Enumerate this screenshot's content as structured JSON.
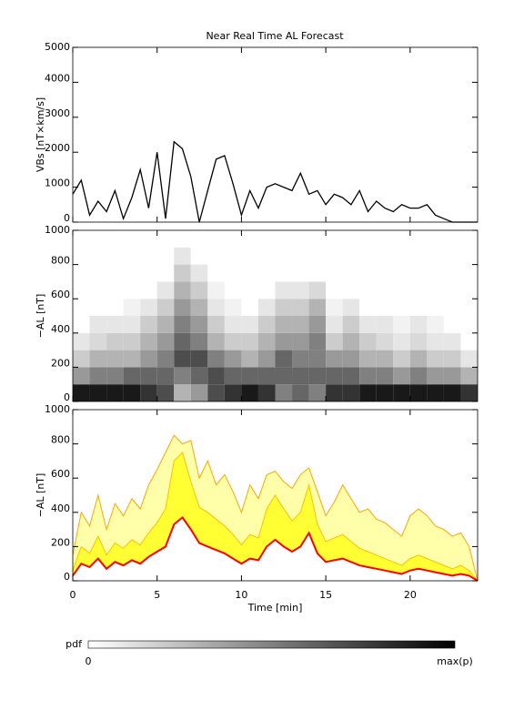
{
  "chart_data": [
    {
      "type": "line",
      "title": "Near Real Time AL Forecast",
      "ylabel": "VBs [nT×km/s]",
      "color": "#000000",
      "xlim": [
        0,
        24
      ],
      "xticks": [
        0,
        5,
        10,
        15,
        20
      ],
      "show_xtick_labels": false,
      "ylim": [
        0,
        5000
      ],
      "yticks": [
        0,
        1000,
        2000,
        3000,
        4000,
        5000
      ],
      "x": [
        0,
        0.5,
        1,
        1.5,
        2,
        2.5,
        3,
        3.5,
        4,
        4.5,
        5,
        5.5,
        6,
        6.5,
        7,
        7.5,
        8,
        8.5,
        9,
        9.5,
        10,
        10.5,
        11,
        11.5,
        12,
        12.5,
        13,
        13.5,
        14,
        14.5,
        15,
        15.5,
        16,
        16.5,
        17,
        17.5,
        18,
        18.5,
        19,
        19.5,
        20,
        20.5,
        21,
        21.5,
        22,
        22.5,
        23,
        23.5,
        24
      ],
      "values": [
        800,
        1200,
        200,
        600,
        300,
        900,
        100,
        700,
        1500,
        400,
        2000,
        100,
        2300,
        2100,
        1300,
        0,
        900,
        1800,
        1900,
        1100,
        200,
        900,
        400,
        1000,
        1100,
        1000,
        900,
        1400,
        800,
        900,
        500,
        800,
        700,
        500,
        900,
        300,
        600,
        400,
        300,
        500,
        400,
        400,
        500,
        200,
        100,
        0,
        0,
        0,
        0
      ]
    },
    {
      "type": "heatmap",
      "ylabel": "−AL [nT]",
      "xlim": [
        0,
        24
      ],
      "xticks": [
        0,
        5,
        10,
        15,
        20
      ],
      "show_xtick_labels": false,
      "ylim": [
        0,
        1000
      ],
      "yticks": [
        0,
        200,
        400,
        600,
        800,
        1000
      ],
      "xbins": [
        0,
        1,
        2,
        3,
        4,
        5,
        6,
        7,
        8,
        9,
        10,
        11,
        12,
        13,
        14,
        15,
        16,
        17,
        18,
        19,
        20,
        21,
        22,
        23,
        24
      ],
      "ybins": [
        0,
        100,
        200,
        300,
        400,
        500,
        600,
        700,
        800,
        900
      ],
      "pdf": [
        [
          0.9,
          0.4,
          0.2,
          0.1,
          0,
          0,
          0,
          0,
          0
        ],
        [
          0.9,
          0.5,
          0.3,
          0.15,
          0.1,
          0,
          0,
          0,
          0
        ],
        [
          0.9,
          0.5,
          0.3,
          0.2,
          0.1,
          0,
          0,
          0,
          0
        ],
        [
          0.9,
          0.6,
          0.3,
          0.2,
          0.1,
          0.05,
          0,
          0,
          0
        ],
        [
          0.8,
          0.6,
          0.4,
          0.3,
          0.2,
          0.1,
          0,
          0,
          0
        ],
        [
          0.7,
          0.6,
          0.5,
          0.4,
          0.3,
          0.2,
          0.1,
          0,
          0
        ],
        [
          0.3,
          0.5,
          0.7,
          0.6,
          0.5,
          0.4,
          0.3,
          0.2,
          0.1
        ],
        [
          0.4,
          0.6,
          0.7,
          0.5,
          0.4,
          0.3,
          0.2,
          0.1,
          0
        ],
        [
          0.7,
          0.7,
          0.5,
          0.3,
          0.2,
          0.1,
          0.05,
          0,
          0
        ],
        [
          0.8,
          0.6,
          0.4,
          0.2,
          0.1,
          0.05,
          0,
          0,
          0
        ],
        [
          0.9,
          0.6,
          0.3,
          0.2,
          0.1,
          0,
          0,
          0,
          0
        ],
        [
          0.8,
          0.6,
          0.4,
          0.3,
          0.2,
          0.1,
          0,
          0,
          0
        ],
        [
          0.5,
          0.6,
          0.6,
          0.4,
          0.3,
          0.2,
          0.1,
          0,
          0
        ],
        [
          0.6,
          0.6,
          0.5,
          0.4,
          0.3,
          0.2,
          0.1,
          0,
          0
        ],
        [
          0.5,
          0.6,
          0.5,
          0.5,
          0.4,
          0.3,
          0.15,
          0,
          0
        ],
        [
          0.8,
          0.6,
          0.4,
          0.2,
          0.1,
          0.05,
          0,
          0,
          0
        ],
        [
          0.8,
          0.6,
          0.4,
          0.3,
          0.2,
          0.1,
          0,
          0,
          0
        ],
        [
          0.9,
          0.5,
          0.3,
          0.2,
          0.1,
          0,
          0,
          0,
          0
        ],
        [
          0.9,
          0.5,
          0.3,
          0.15,
          0.1,
          0,
          0,
          0,
          0
        ],
        [
          0.9,
          0.4,
          0.2,
          0.1,
          0.05,
          0,
          0,
          0,
          0
        ],
        [
          0.9,
          0.5,
          0.3,
          0.15,
          0.1,
          0,
          0,
          0,
          0
        ],
        [
          0.9,
          0.4,
          0.2,
          0.1,
          0.05,
          0,
          0,
          0,
          0
        ],
        [
          0.9,
          0.4,
          0.2,
          0.1,
          0,
          0,
          0,
          0,
          0
        ],
        [
          0.8,
          0.3,
          0.1,
          0,
          0,
          0,
          0,
          0,
          0
        ]
      ],
      "colorbar_label": "pdf",
      "colorbar_min_label": "0",
      "colorbar_max_label": "max(p)"
    },
    {
      "type": "area",
      "ylabel": "−AL [nT]",
      "xlabel": "Time [min]",
      "xlim": [
        0,
        24
      ],
      "xticks": [
        0,
        5,
        10,
        15,
        20
      ],
      "show_xtick_labels": true,
      "ylim": [
        0,
        1000
      ],
      "yticks": [
        0,
        200,
        400,
        600,
        800,
        1000
      ],
      "x": [
        0,
        0.5,
        1,
        1.5,
        2,
        2.5,
        3,
        3.5,
        4,
        4.5,
        5,
        5.5,
        6,
        6.5,
        7,
        7.5,
        8,
        8.5,
        9,
        9.5,
        10,
        10.5,
        11,
        11.5,
        12,
        12.5,
        13,
        13.5,
        14,
        14.5,
        15,
        15.5,
        16,
        16.5,
        17,
        17.5,
        18,
        18.5,
        19,
        19.5,
        20,
        20.5,
        21,
        21.5,
        22,
        22.5,
        23,
        23.5,
        24
      ],
      "series": [
        {
          "color": "#ffffaa",
          "stroke": "#ffa500",
          "values": [
            150,
            400,
            320,
            500,
            300,
            450,
            380,
            480,
            420,
            560,
            650,
            750,
            850,
            800,
            820,
            600,
            700,
            560,
            620,
            520,
            400,
            560,
            480,
            620,
            640,
            580,
            540,
            620,
            660,
            520,
            380,
            460,
            560,
            480,
            400,
            420,
            360,
            340,
            300,
            260,
            380,
            420,
            380,
            320,
            300,
            260,
            280,
            200,
            0
          ]
        },
        {
          "color": "#ffff33",
          "stroke": "#ffc000",
          "values": [
            60,
            200,
            160,
            260,
            150,
            220,
            190,
            240,
            210,
            280,
            340,
            420,
            700,
            750,
            580,
            430,
            400,
            360,
            320,
            270,
            210,
            270,
            250,
            420,
            500,
            420,
            350,
            400,
            560,
            330,
            230,
            250,
            270,
            230,
            190,
            170,
            150,
            130,
            110,
            90,
            130,
            150,
            130,
            110,
            90,
            70,
            90,
            60,
            0
          ]
        },
        {
          "color": "#ffffff",
          "stroke": "#ff0000",
          "values": [
            30,
            100,
            80,
            130,
            70,
            110,
            90,
            120,
            100,
            140,
            170,
            200,
            330,
            370,
            300,
            220,
            200,
            180,
            160,
            130,
            100,
            130,
            120,
            200,
            240,
            200,
            170,
            200,
            280,
            160,
            110,
            120,
            130,
            110,
            90,
            80,
            70,
            60,
            50,
            40,
            60,
            70,
            60,
            50,
            40,
            30,
            40,
            30,
            0
          ]
        }
      ]
    }
  ]
}
